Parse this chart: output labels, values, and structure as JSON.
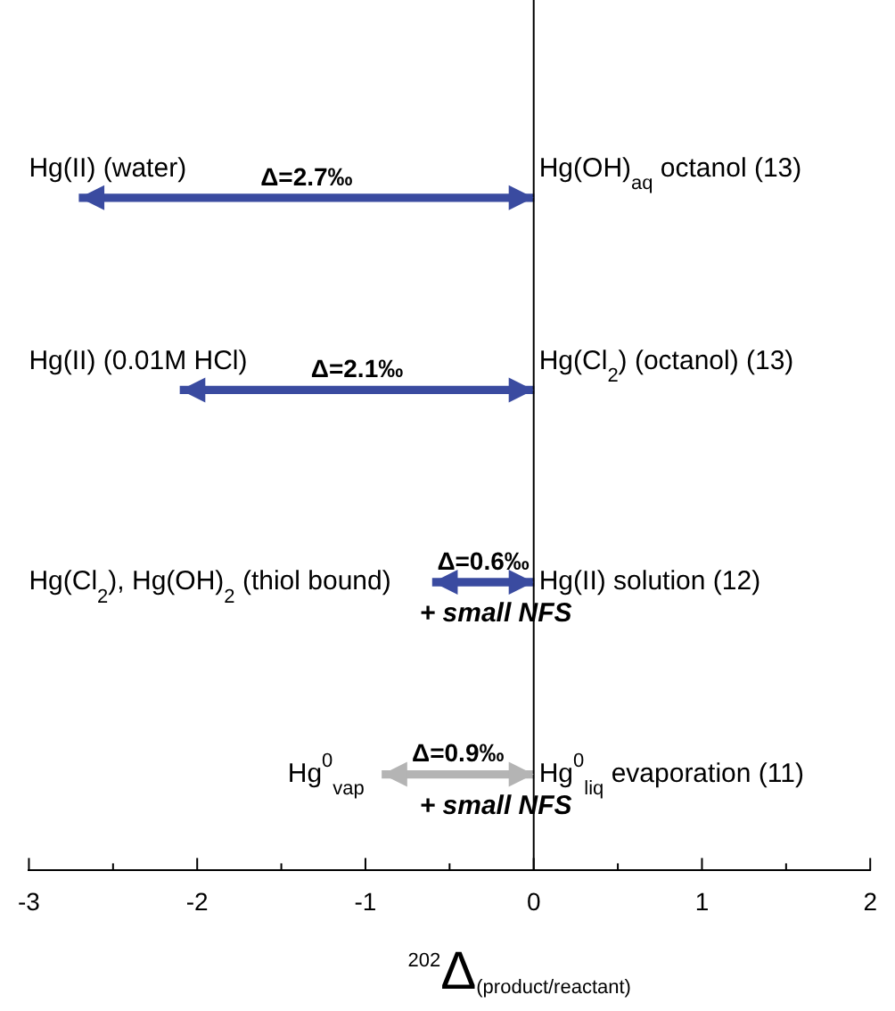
{
  "chart_data": {
    "type": "bar",
    "orientation": "horizontal",
    "xlabel": "$^{202}$Δ$_{(product/reactant)}$",
    "categories": [
      "Hg(OH)$_{aq}$ octanol (13)",
      "Hg(Cl$_{2}$) (octanol) (13)",
      "Hg(II) solution (12)",
      "Hg$^{0}$$_{liq}$ evaporation (11)"
    ],
    "values": [
      2.7,
      2.1,
      0.6,
      0.9
    ],
    "base": [
      -2.7,
      -2.1,
      -0.6,
      -0.9
    ],
    "colors": [
      "#3a4ba0",
      "#3a4ba0",
      "#3a4ba0",
      "#b4b4b4"
    ],
    "value_labels": [
      "Δ=2.7‰",
      "Δ=2.1‰",
      "Δ=0.6‰",
      "Δ=0.9‰"
    ],
    "xlim": [
      -3,
      2
    ],
    "xticks": [
      -3,
      {
        "value": -2.5,
        "label": null
      },
      -2,
      {
        "value": -1.5,
        "label": null
      },
      -1,
      {
        "value": -0.5,
        "label": null
      },
      0,
      {
        "value": 0.5,
        "label": null
      },
      1,
      {
        "value": 1.5,
        "label": null
      },
      2
    ],
    "grid": false,
    "annotations": [
      "Hg(II) (water)",
      "Hg(II) (0.01M HCl)",
      "Hg(Cl$_{2}$), Hg(OH)$_{2}$ (thiol bound)",
      "+ small NFS",
      "Hg$^{0}$$_{vap}$",
      "+ small NFS"
    ]
  }
}
